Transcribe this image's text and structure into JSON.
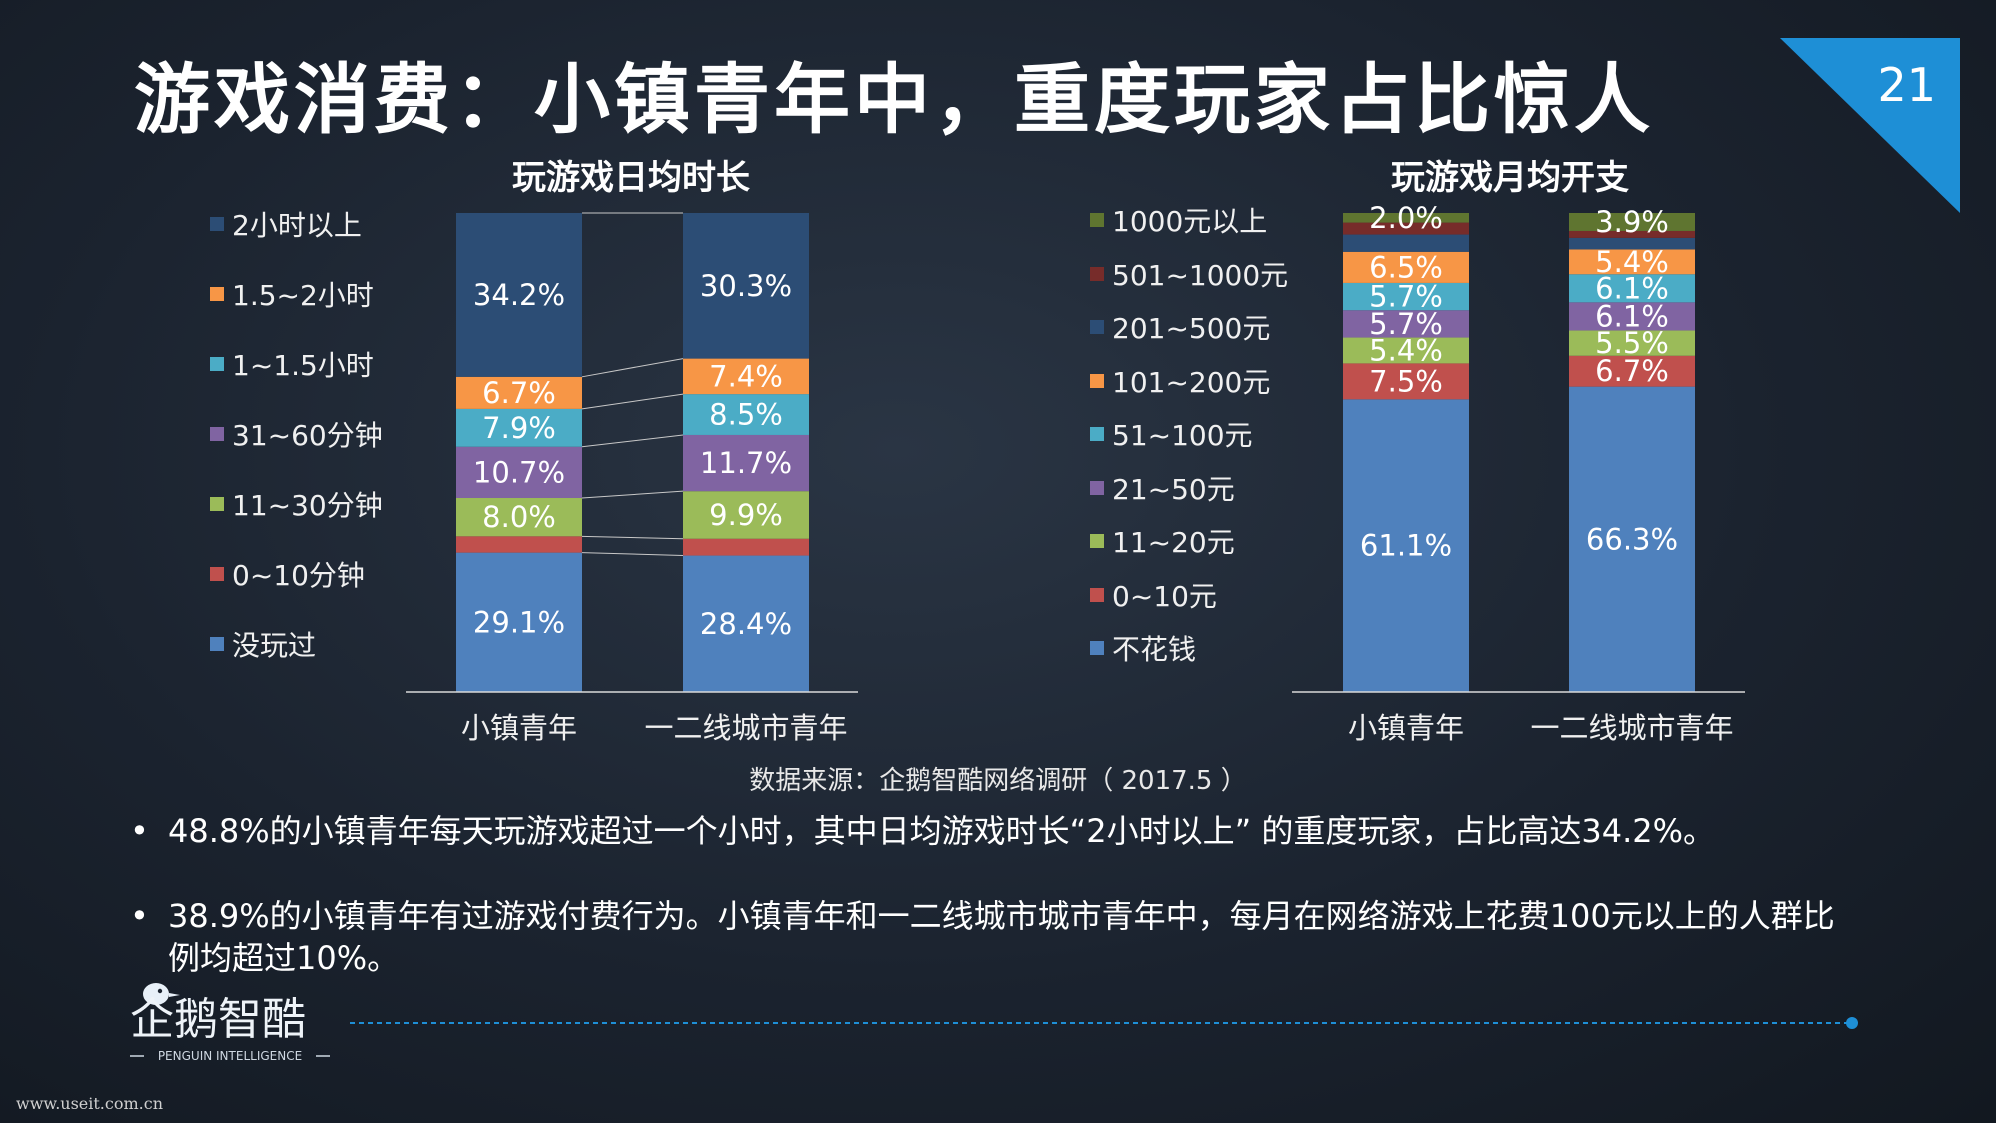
{
  "slide": {
    "title": "游戏消费：小镇青年中，重度玩家占比惊人",
    "page_number": "21",
    "source": "数据来源：企鹅智酷网络调研（ 2017.5 ）",
    "bullets": [
      "48.8%的小镇青年每天玩游戏超过一个小时，其中日均游戏时长“2小时以上” 的重度玩家，占比高达34.2%。",
      "38.9%的小镇青年有过游戏付费行为。小镇青年和一二线城市城市青年中，每月在网络游戏上花费100元以上的人群比例均超过10%。"
    ],
    "bullet_symbol": "•",
    "logo": {
      "name": "企鹅智酷",
      "sub": "PENGUIN INTELLIGENCE"
    },
    "footer_url": "www.useit.com.cn",
    "accent_color": "#1e8fd6"
  },
  "chart_data": [
    {
      "type": "bar",
      "stacked": true,
      "percent": true,
      "title": "玩游戏日均时长",
      "categories": [
        "小镇青年",
        "一二线城市青年"
      ],
      "legend_position": "left",
      "series": [
        {
          "name": "没玩过",
          "color": "#4f81bd",
          "values": [
            29.1,
            28.4
          ]
        },
        {
          "name": "0~10分钟",
          "color": "#c0504d",
          "values": [
            3.4,
            3.5
          ]
        },
        {
          "name": "11~30分钟",
          "color": "#9bbb59",
          "values": [
            8.0,
            9.9
          ]
        },
        {
          "name": "31~60分钟",
          "color": "#8064a2",
          "values": [
            10.7,
            11.7
          ]
        },
        {
          "name": "1~1.5小时",
          "color": "#4bacc6",
          "values": [
            7.9,
            8.5
          ]
        },
        {
          "name": "1.5~2小时",
          "color": "#f79646",
          "values": [
            6.7,
            7.4
          ]
        },
        {
          "name": "2小时以上",
          "color": "#2c4d75",
          "values": [
            34.2,
            30.3
          ]
        }
      ],
      "labels": [
        [
          "29.1%",
          "",
          "8.0%",
          "10.7%",
          "7.9%",
          "6.7%",
          "34.2%"
        ],
        [
          "28.4%",
          "",
          "9.9%",
          "11.7%",
          "8.5%",
          "7.4%",
          "30.3%"
        ]
      ]
    },
    {
      "type": "bar",
      "stacked": true,
      "percent": true,
      "title": "玩游戏月均开支",
      "categories": [
        "小镇青年",
        "一二线城市青年"
      ],
      "legend_position": "left",
      "series": [
        {
          "name": "不花钱",
          "color": "#4f81bd",
          "values": [
            61.1,
            66.3
          ]
        },
        {
          "name": "0~10元",
          "color": "#c0504d",
          "values": [
            7.5,
            6.7
          ]
        },
        {
          "name": "11~20元",
          "color": "#9bbb59",
          "values": [
            5.4,
            5.5
          ]
        },
        {
          "name": "21~50元",
          "color": "#8064a2",
          "values": [
            5.7,
            6.1
          ]
        },
        {
          "name": "51~100元",
          "color": "#4bacc6",
          "values": [
            5.7,
            6.1
          ]
        },
        {
          "name": "101~200元",
          "color": "#f79646",
          "values": [
            6.5,
            5.4
          ]
        },
        {
          "name": "201~500元",
          "color": "#2c4d75",
          "values": [
            3.6,
            2.5
          ]
        },
        {
          "name": "501~1000元",
          "color": "#772c2a",
          "values": [
            2.5,
            1.5
          ]
        },
        {
          "name": "1000元以上",
          "color": "#5f7530",
          "values": [
            2.0,
            3.9
          ]
        }
      ],
      "labels": [
        [
          "61.1%",
          "7.5%",
          "5.4%",
          "5.7%",
          "5.7%",
          "6.5%",
          "",
          "",
          "2.0%"
        ],
        [
          "66.3%",
          "6.7%",
          "5.5%",
          "6.1%",
          "6.1%",
          "5.4%",
          "",
          "",
          "3.9%"
        ]
      ]
    }
  ]
}
